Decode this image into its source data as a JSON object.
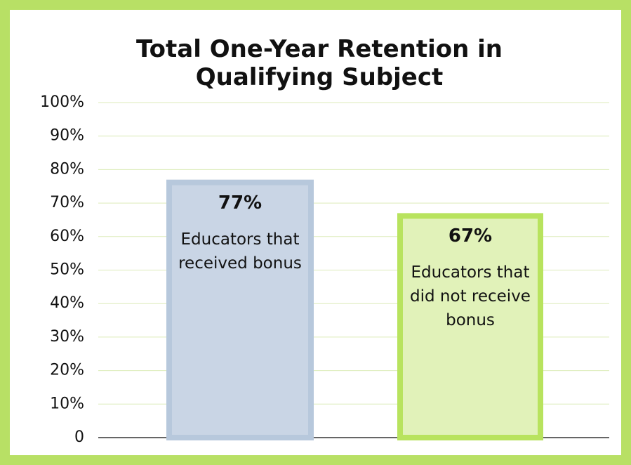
{
  "chart_data": {
    "type": "bar",
    "title": "Total One-Year Retention in Qualifying Subject",
    "categories": [
      "Educators that received bonus",
      "Educators that did not receive bonus"
    ],
    "values": [
      77,
      67
    ],
    "value_labels": [
      "77%",
      "67%"
    ],
    "colors": [
      "#c9d5e5",
      "#e1f2b9"
    ],
    "edge_colors": [
      "#b7c8dc",
      "#b8e35e"
    ],
    "ylim": [
      0,
      100
    ],
    "yticks": [
      0,
      {
        "value": 10,
        "label": "10%"
      },
      {
        "value": 20,
        "label": "20%"
      },
      {
        "value": 30,
        "label": "30%"
      },
      {
        "value": 40,
        "label": "40%"
      },
      {
        "value": 50,
        "label": "50%"
      },
      {
        "value": 60,
        "label": "60%"
      },
      {
        "value": 70,
        "label": "70%"
      },
      {
        "value": 80,
        "label": "80%"
      },
      {
        "value": 90,
        "label": "90%"
      },
      {
        "value": 100,
        "label": "100%"
      }
    ],
    "grid": true
  }
}
